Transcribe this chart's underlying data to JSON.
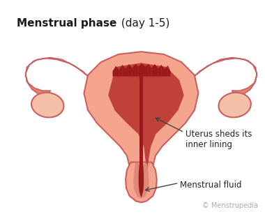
{
  "title_bold": "Menstrual phase",
  "title_normal": " (day 1-5)",
  "annotation1_text": "Uterus sheds its\ninner lining",
  "annotation2_text": "Menstrual fluid",
  "copyright_text": "© Menstrupedia",
  "bg_color": "#ffffff",
  "uterus_fill": "#f5a58e",
  "uterus_outline": "#c96060",
  "ovary_fill": "#f5c0a8",
  "blood_color": "#9b1a1a",
  "tube_fill": "#e8826a",
  "lining_color": "#c0403a"
}
